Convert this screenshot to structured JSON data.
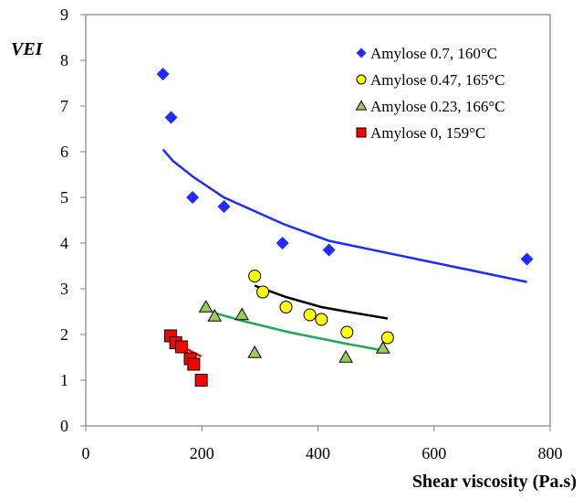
{
  "chart_data": {
    "type": "scatter",
    "xlabel": "Shear viscosity (Pa.s)",
    "ylabel": "VEI",
    "xlim": [
      0,
      800
    ],
    "ylim": [
      0,
      9
    ],
    "x_ticks": [
      0,
      200,
      400,
      600,
      800
    ],
    "y_ticks": [
      0,
      1,
      2,
      3,
      4,
      5,
      6,
      7,
      8,
      9
    ],
    "grid": false,
    "legend_position": "top-right",
    "series": [
      {
        "name": "Amylose 0.7, 160°C",
        "marker": "diamond",
        "color": "#1f2bff",
        "points": [
          {
            "x": 133,
            "y": 7.7
          },
          {
            "x": 147,
            "y": 6.75
          },
          {
            "x": 184,
            "y": 5.0
          },
          {
            "x": 238,
            "y": 4.8
          },
          {
            "x": 339,
            "y": 4.0
          },
          {
            "x": 419,
            "y": 3.85
          },
          {
            "x": 760,
            "y": 3.65
          }
        ],
        "fit": {
          "color": "#1f2bff",
          "points": [
            {
              "x": 133,
              "y": 6.05
            },
            {
              "x": 150,
              "y": 5.8
            },
            {
              "x": 185,
              "y": 5.45
            },
            {
              "x": 238,
              "y": 5.0
            },
            {
              "x": 340,
              "y": 4.42
            },
            {
              "x": 419,
              "y": 4.05
            },
            {
              "x": 760,
              "y": 3.15
            }
          ]
        }
      },
      {
        "name": "Amylose 0.47, 165°C",
        "marker": "circle",
        "color": "#ffff00",
        "points": [
          {
            "x": 291,
            "y": 3.28
          },
          {
            "x": 305,
            "y": 2.93
          },
          {
            "x": 345,
            "y": 2.6
          },
          {
            "x": 386,
            "y": 2.43
          },
          {
            "x": 406,
            "y": 2.33
          },
          {
            "x": 450,
            "y": 2.05
          },
          {
            "x": 520,
            "y": 1.93
          }
        ],
        "fit": {
          "color": "#000000",
          "points": [
            {
              "x": 291,
              "y": 3.07
            },
            {
              "x": 345,
              "y": 2.82
            },
            {
              "x": 406,
              "y": 2.6
            },
            {
              "x": 450,
              "y": 2.5
            },
            {
              "x": 520,
              "y": 2.35
            }
          ]
        }
      },
      {
        "name": "Amylose 0.23, 166°C",
        "marker": "triangle",
        "color": "#9acd56",
        "points": [
          {
            "x": 207,
            "y": 2.6
          },
          {
            "x": 222,
            "y": 2.4
          },
          {
            "x": 269,
            "y": 2.43
          },
          {
            "x": 291,
            "y": 1.6
          },
          {
            "x": 448,
            "y": 1.5
          },
          {
            "x": 512,
            "y": 1.7
          }
        ],
        "fit": {
          "color": "#1fa85a",
          "points": [
            {
              "x": 222,
              "y": 2.47
            },
            {
              "x": 269,
              "y": 2.3
            },
            {
              "x": 350,
              "y": 2.05
            },
            {
              "x": 448,
              "y": 1.8
            },
            {
              "x": 512,
              "y": 1.65
            }
          ]
        }
      },
      {
        "name": "Amylose 0, 159°C",
        "marker": "square",
        "color": "#ff0000",
        "points": [
          {
            "x": 146,
            "y": 1.97
          },
          {
            "x": 155,
            "y": 1.82
          },
          {
            "x": 165,
            "y": 1.73
          },
          {
            "x": 180,
            "y": 1.47
          },
          {
            "x": 186,
            "y": 1.35
          },
          {
            "x": 199,
            "y": 1.0
          }
        ],
        "fit": {
          "color": "#ff0000",
          "points": [
            {
              "x": 146,
              "y": 1.95
            },
            {
              "x": 165,
              "y": 1.75
            },
            {
              "x": 186,
              "y": 1.6
            },
            {
              "x": 199,
              "y": 1.52
            }
          ]
        }
      }
    ]
  }
}
